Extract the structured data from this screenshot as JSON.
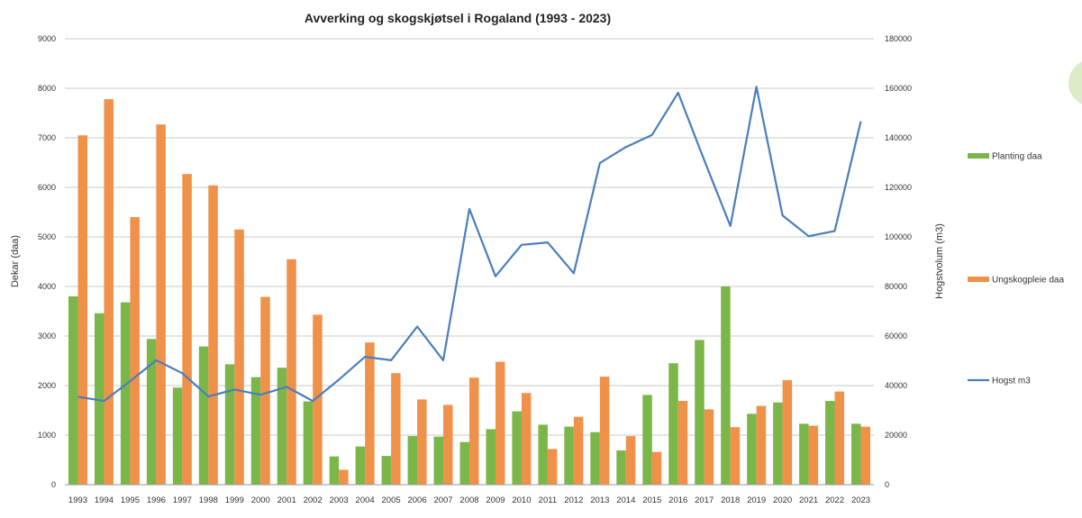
{
  "colors": {
    "planting": "#7ab648",
    "ungskog": "#f0914a",
    "hogst": "#4a7ebb",
    "deco_circle": "#dcebc8"
  },
  "chart_data": {
    "type": "bar",
    "title": "Avverking og skogskjøtsel i Rogaland (1993 - 2023)",
    "ylabel": "Dekar (daa)",
    "y2label": "Hogstvolum (m3)",
    "ylim": [
      0,
      9000
    ],
    "y2lim": [
      0,
      180000
    ],
    "yticks": [
      "0",
      "1000",
      "2000",
      "3000",
      "4000",
      "5000",
      "6000",
      "7000",
      "8000",
      "9000"
    ],
    "y2ticks": [
      "0",
      "20000",
      "40000",
      "60000",
      "80000",
      "100000",
      "120000",
      "140000",
      "160000",
      "180000"
    ],
    "grid": true,
    "legend_position": "right",
    "categories": [
      "1993",
      "1994",
      "1995",
      "1996",
      "1997",
      "1998",
      "1999",
      "2000",
      "2001",
      "2002",
      "2003",
      "2004",
      "2005",
      "2006",
      "2007",
      "2008",
      "2009",
      "2010",
      "2011",
      "2012",
      "2013",
      "2014",
      "2015",
      "2016",
      "2017",
      "2018",
      "2019",
      "2020",
      "2021",
      "2022",
      "2023"
    ],
    "series": [
      {
        "name": "Planting  daa",
        "kind": "bar",
        "axis": "left",
        "values": [
          3800,
          3460,
          3680,
          2940,
          1960,
          2790,
          2430,
          2170,
          2360,
          1680,
          570,
          770,
          580,
          980,
          970,
          860,
          1120,
          1480,
          1210,
          1170,
          1060,
          690,
          1810,
          2450,
          2920,
          4000,
          1430,
          1660,
          1230,
          1690,
          1230
        ]
      },
      {
        "name": "Ungskogpleie daa",
        "kind": "bar",
        "axis": "left",
        "values": [
          7050,
          7780,
          5400,
          7270,
          6270,
          6040,
          5150,
          3790,
          4550,
          3430,
          300,
          2870,
          2250,
          1720,
          1610,
          2160,
          2480,
          1850,
          720,
          1370,
          2180,
          980,
          660,
          1690,
          1520,
          1160,
          1590,
          2110,
          1190,
          1880,
          1170
        ]
      },
      {
        "name": "Hogst m3",
        "kind": "line",
        "axis": "right",
        "values": [
          35500,
          33800,
          41800,
          50200,
          45000,
          35600,
          38400,
          36300,
          39500,
          33800,
          42400,
          51600,
          50200,
          63800,
          50200,
          111300,
          84100,
          96800,
          97800,
          85300,
          129800,
          136300,
          141200,
          158200,
          131000,
          104400,
          160600,
          108700,
          100300,
          102400,
          146700
        ]
      }
    ]
  }
}
